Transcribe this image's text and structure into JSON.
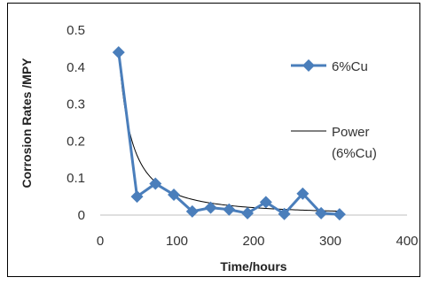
{
  "chart_data": {
    "type": "line",
    "xlabel": "Time/hours",
    "ylabel": "Corrosion Rates /MPY",
    "xlim": [
      0,
      400
    ],
    "ylim": [
      0,
      0.5
    ],
    "xticks": [
      "0",
      "100",
      "200",
      "300",
      "400"
    ],
    "yticks": [
      "0",
      "0.1",
      "0.2",
      "0.3",
      "0.4",
      "0.5"
    ],
    "grid": false,
    "legend_position": "right",
    "series": [
      {
        "name": "6%Cu",
        "marker": "diamond",
        "color": "#4a7ebb",
        "x": [
          24,
          48,
          72,
          96,
          120,
          144,
          168,
          192,
          216,
          240,
          264,
          288,
          312
        ],
        "y": [
          0.44,
          0.05,
          0.085,
          0.055,
          0.01,
          0.02,
          0.015,
          0.005,
          0.035,
          0.003,
          0.058,
          0.005,
          0.002
        ]
      },
      {
        "name": "Power\n(6%Cu)",
        "legend_lines": [
          "Power",
          "(6%Cu)"
        ],
        "color": "#000000",
        "trendline": "power",
        "coefficient": 46,
        "exponent": -1.46,
        "x_range": [
          24,
          312
        ]
      }
    ]
  }
}
